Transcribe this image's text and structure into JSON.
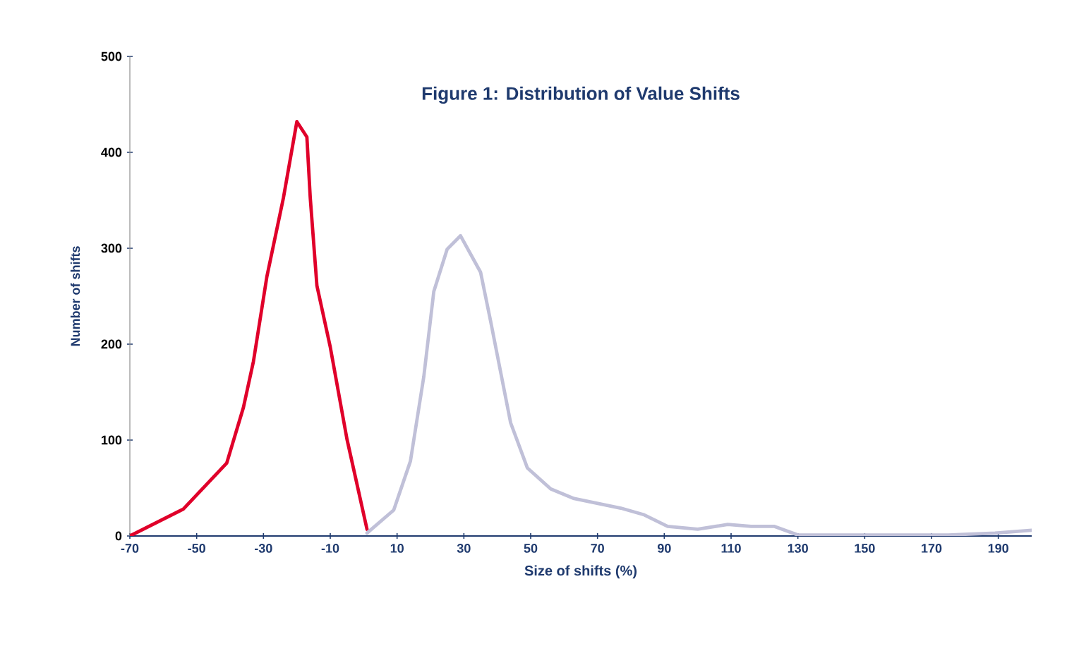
{
  "chart_data": {
    "type": "line",
    "title": "Figure 1: Distribution of Value Shifts",
    "xlabel": "Size of shifts (%)",
    "ylabel": "Number of shifts",
    "xlim": [
      -70,
      200
    ],
    "xticks": [
      -70,
      -50,
      -30,
      -10,
      10,
      30,
      50,
      70,
      90,
      110,
      130,
      150,
      170,
      190
    ],
    "ylim": [
      0,
      500
    ],
    "yticks": [
      0,
      100,
      200,
      300,
      400,
      500
    ],
    "grid": false,
    "marker": "none",
    "line_style": "solid",
    "series": [
      {
        "color": "#e0002a",
        "x": [
          -70,
          -54,
          -41,
          -36,
          -33,
          -29,
          -24,
          -20,
          -17,
          -16,
          -14,
          -10,
          -5,
          1
        ],
        "values": [
          0,
          28,
          76,
          134,
          182,
          270,
          353,
          432,
          416,
          353,
          261,
          197,
          101,
          7
        ]
      },
      {
        "color": "#c0c0d8",
        "x": [
          1,
          9,
          14,
          18,
          21,
          25,
          29,
          35,
          38,
          44,
          49,
          56,
          63,
          77,
          84,
          91,
          100,
          109,
          116,
          123,
          130,
          147,
          175,
          189,
          200
        ],
        "values": [
          3,
          27,
          78,
          166,
          255,
          299,
          313,
          275,
          224,
          118,
          71,
          49,
          39,
          29,
          22,
          10,
          7,
          12,
          10,
          10,
          1,
          1,
          1,
          3,
          6
        ]
      }
    ]
  }
}
